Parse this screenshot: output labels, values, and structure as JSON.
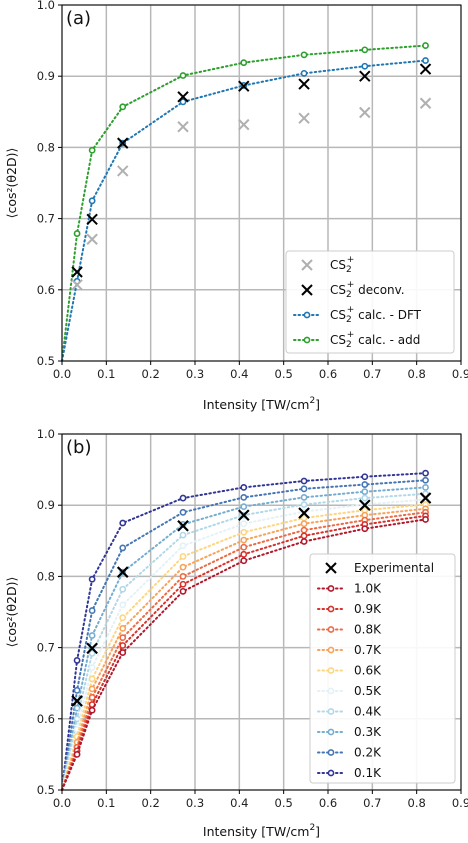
{
  "chart_data": [
    {
      "type": "scatter",
      "panel_label": "(a)",
      "xlabel": "Intensity [TW/cm²]",
      "ylabel": "⟨cos²(θ2D)⟩",
      "xlim": [
        0,
        0.9
      ],
      "ylim": [
        0.5,
        1.0
      ],
      "xticks": [
        "0.0",
        "0.1",
        "0.2",
        "0.3",
        "0.4",
        "0.5",
        "0.6",
        "0.7",
        "0.8",
        "0.9"
      ],
      "yticks": [
        "0.5",
        "0.6",
        "0.7",
        "0.8",
        "0.9",
        "1.0"
      ],
      "grid": true,
      "legend_position": "lower-right",
      "series": [
        {
          "name": "CS₂⁺",
          "marker": "x",
          "color": "#b0b0b0",
          "line": false,
          "x": [
            0.034,
            0.068,
            0.137,
            0.273,
            0.41,
            0.546,
            0.683,
            0.82
          ],
          "y": [
            0.607,
            0.671,
            0.767,
            0.829,
            0.832,
            0.841,
            0.849,
            0.862
          ]
        },
        {
          "name": "CS₂⁺ deconv.",
          "marker": "x",
          "color": "#000000",
          "line": false,
          "x": [
            0.034,
            0.068,
            0.137,
            0.273,
            0.41,
            0.546,
            0.683,
            0.82
          ],
          "y": [
            0.625,
            0.699,
            0.806,
            0.871,
            0.886,
            0.889,
            0.9,
            0.91
          ]
        },
        {
          "name": "CS₂⁺ calc. - DFT",
          "marker": "o",
          "color": "#1f77b4",
          "line": true,
          "x": [
            0.0,
            0.034,
            0.068,
            0.137,
            0.273,
            0.41,
            0.546,
            0.683,
            0.82
          ],
          "y": [
            0.5,
            0.612,
            0.725,
            0.806,
            0.864,
            0.887,
            0.904,
            0.914,
            0.922
          ]
        },
        {
          "name": "CS₂⁺ calc. - add",
          "marker": "o",
          "color": "#2ca02c",
          "line": true,
          "x": [
            0.0,
            0.034,
            0.068,
            0.137,
            0.273,
            0.41,
            0.546,
            0.683,
            0.82
          ],
          "y": [
            0.5,
            0.679,
            0.796,
            0.857,
            0.901,
            0.919,
            0.93,
            0.937,
            0.943
          ]
        }
      ]
    },
    {
      "type": "scatter",
      "panel_label": "(b)",
      "xlabel": "Intensity [TW/cm²]",
      "ylabel": "⟨cos²(θ2D)⟩",
      "xlim": [
        0,
        0.9
      ],
      "ylim": [
        0.5,
        1.0
      ],
      "xticks": [
        "0.0",
        "0.1",
        "0.2",
        "0.3",
        "0.4",
        "0.5",
        "0.6",
        "0.7",
        "0.8",
        "0.9"
      ],
      "yticks": [
        "0.5",
        "0.6",
        "0.7",
        "0.8",
        "0.9",
        "1.0"
      ],
      "grid": true,
      "legend_position": "lower-right",
      "x": [
        0.0,
        0.034,
        0.068,
        0.137,
        0.273,
        0.41,
        0.546,
        0.683,
        0.82
      ],
      "series": [
        {
          "name": "Experimental",
          "marker": "x",
          "color": "#000000",
          "line": false,
          "x": [
            0.034,
            0.068,
            0.137,
            0.273,
            0.41,
            0.546,
            0.683,
            0.82
          ],
          "y": [
            0.625,
            0.699,
            0.806,
            0.871,
            0.886,
            0.889,
            0.9,
            0.91
          ]
        },
        {
          "name": "1.0K",
          "marker": "o",
          "color": "#b2182b",
          "line": true,
          "y": [
            0.5,
            0.55,
            0.612,
            0.693,
            0.779,
            0.822,
            0.849,
            0.867,
            0.88
          ]
        },
        {
          "name": "0.9K",
          "marker": "o",
          "color": "#d6312b",
          "line": true,
          "y": [
            0.5,
            0.555,
            0.62,
            0.703,
            0.789,
            0.831,
            0.857,
            0.873,
            0.885
          ]
        },
        {
          "name": "0.8K",
          "marker": "o",
          "color": "#ec6a45",
          "line": true,
          "y": [
            0.5,
            0.56,
            0.63,
            0.714,
            0.8,
            0.841,
            0.865,
            0.879,
            0.89
          ]
        },
        {
          "name": "0.7K",
          "marker": "o",
          "color": "#f9a25a",
          "line": true,
          "y": [
            0.5,
            0.567,
            0.642,
            0.727,
            0.813,
            0.851,
            0.874,
            0.886,
            0.895
          ]
        },
        {
          "name": "0.6K",
          "marker": "o",
          "color": "#fed682",
          "line": true,
          "y": [
            0.5,
            0.575,
            0.656,
            0.742,
            0.828,
            0.862,
            0.882,
            0.893,
            0.901
          ]
        },
        {
          "name": "0.5K",
          "marker": "o",
          "color": "#e4f1f6",
          "line": true,
          "y": [
            0.5,
            0.585,
            0.672,
            0.76,
            0.843,
            0.874,
            0.891,
            0.901,
            0.908
          ]
        },
        {
          "name": "0.4K",
          "marker": "o",
          "color": "#b0d8e9",
          "line": true,
          "y": [
            0.5,
            0.6,
            0.692,
            0.782,
            0.858,
            0.886,
            0.901,
            0.91,
            0.916
          ]
        },
        {
          "name": "0.3K",
          "marker": "o",
          "color": "#74add1",
          "line": true,
          "y": [
            0.5,
            0.615,
            0.717,
            0.806,
            0.873,
            0.898,
            0.911,
            0.919,
            0.925
          ]
        },
        {
          "name": "0.2K",
          "marker": "o",
          "color": "#4575b4",
          "line": true,
          "y": [
            0.5,
            0.64,
            0.752,
            0.84,
            0.89,
            0.911,
            0.923,
            0.929,
            0.935
          ]
        },
        {
          "name": "0.1K",
          "marker": "o",
          "color": "#313695",
          "line": true,
          "y": [
            0.5,
            0.682,
            0.796,
            0.875,
            0.91,
            0.925,
            0.934,
            0.94,
            0.945
          ]
        }
      ]
    }
  ]
}
